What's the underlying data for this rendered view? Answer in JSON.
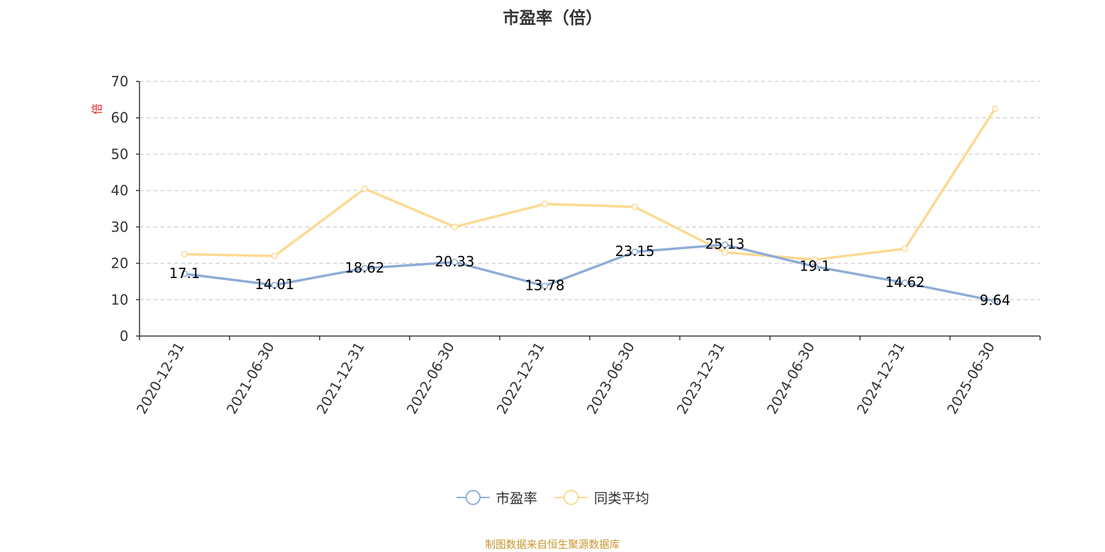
{
  "chart_data": {
    "type": "line",
    "title": "市盈率（倍）",
    "ylabel": "倍",
    "ylim": [
      0,
      70
    ],
    "yticks": [
      0,
      10,
      20,
      30,
      40,
      50,
      60,
      70
    ],
    "grid": true,
    "legend_position": "bottom",
    "categories": [
      "2020-12-31",
      "2021-06-30",
      "2021-12-31",
      "2022-06-30",
      "2022-12-31",
      "2023-06-30",
      "2023-12-31",
      "2024-06-30",
      "2024-12-31",
      "2025-06-30"
    ],
    "series": [
      {
        "name": "市盈率",
        "color": "#8eacd6",
        "values": [
          17.1,
          14.01,
          18.62,
          20.33,
          13.78,
          23.15,
          25.13,
          19.1,
          14.62,
          9.64
        ],
        "labels": [
          "17.1",
          "14.01",
          "18.62",
          "20.33",
          "13.78",
          "23.15",
          "25.13",
          "19.1",
          "14.62",
          "9.64"
        ]
      },
      {
        "name": "同类平均",
        "color": "#fcd990",
        "values": [
          22.5,
          22.0,
          40.5,
          30.0,
          36.3,
          35.5,
          23.0,
          21.0,
          24.0,
          62.5
        ]
      }
    ]
  },
  "source_note": "制图数据来自恒生聚源数据库",
  "colors": {
    "axis": "#333333",
    "grid": "#cccccc",
    "ylabel": "#e02020",
    "source": "#c8962e"
  }
}
